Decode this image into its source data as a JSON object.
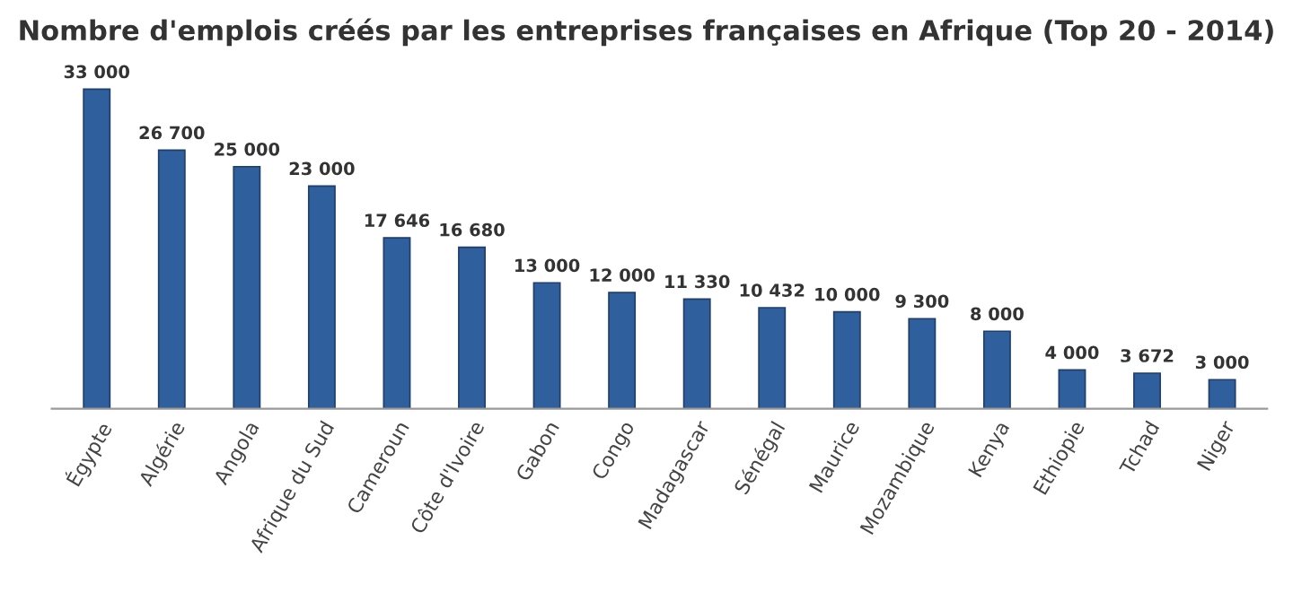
{
  "chart_data": {
    "type": "bar",
    "title": "Nombre d'emplois créés par les entreprises françaises en Afrique (Top 20 - 2014)",
    "categories": [
      "Égypte",
      "Algérie",
      "Angola",
      "Afrique du Sud",
      "Cameroun",
      "Côte d'Ivoire",
      "Gabon",
      "Congo",
      "Madagascar",
      "Sénégal",
      "Maurice",
      "Mozambique",
      "Kenya",
      "Ethiopie",
      "Tchad",
      "Niger"
    ],
    "values": [
      33000,
      26700,
      25000,
      23000,
      17646,
      16680,
      13000,
      12000,
      11330,
      10432,
      10000,
      9300,
      8000,
      4000,
      3672,
      3000
    ],
    "value_labels": [
      "33 000",
      "26 700",
      "25 000",
      "23 000",
      "17 646",
      "16 680",
      "13 000",
      "12 000",
      "11 330",
      "10 432",
      "10 000",
      "9 300",
      "8 000",
      "4 000",
      "3 672",
      "3 000"
    ],
    "color": "#2f5f9c",
    "legend": false
  }
}
